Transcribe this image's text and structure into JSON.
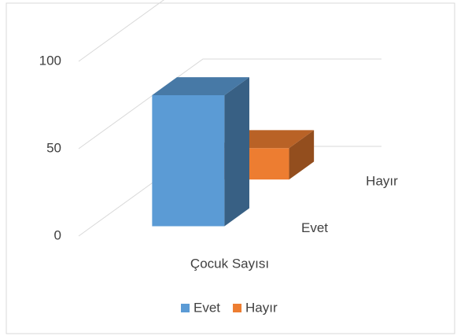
{
  "chart_data": {
    "type": "bar3d",
    "categories": [
      "Çocuk Sayısı"
    ],
    "series": [
      {
        "name": "Evet",
        "color": "#5b9bd5",
        "values": [
          75
        ]
      },
      {
        "name": "Hayır",
        "color": "#ed7d31",
        "values": [
          18
        ]
      }
    ],
    "ylim": [
      0,
      100
    ],
    "yticks": [
      0,
      50,
      100
    ],
    "grid": true,
    "legend": "bottom"
  }
}
